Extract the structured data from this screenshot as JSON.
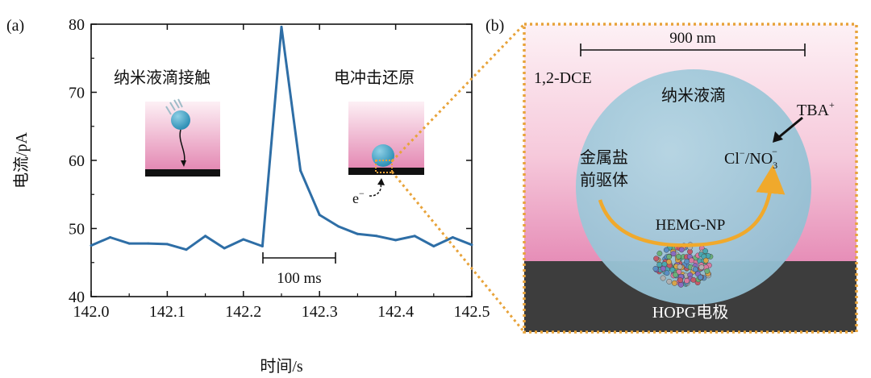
{
  "panel_a": {
    "label": "(a)",
    "annotation_contact": "纳米液滴接触",
    "annotation_reduction": "电冲击还原",
    "electron_label": "e",
    "electron_sup": "−",
    "scale_bar_label": "100 ms"
  },
  "panel_b": {
    "label": "(b)",
    "scale_bar_label": "900 nm",
    "solvent_label": "1,2-DCE",
    "droplet_label": "纳米液滴",
    "cation_label": "TBA",
    "cation_sup": "+",
    "precursor_line1": "金属盐",
    "precursor_line2": "前驱体",
    "anion_cl": "Cl",
    "anion_sup1": "−",
    "anion_slash_no": "/NO",
    "anion_sub": "3",
    "anion_sup2": "−",
    "nanoparticle_label": "HEMG-NP",
    "electrode_label": "HOPG电极"
  },
  "colors": {
    "line": "#2e6ea6",
    "droplet": "#9cc6d8",
    "pink_top": "#fbe9ef",
    "pink_bottom": "#e79cbf",
    "electrode": "#3d3d3d",
    "arrow_orange": "#f0a92c",
    "dotted_orange": "#e8a33a"
  },
  "chart_data": {
    "type": "line",
    "title": "",
    "xlabel": "时间/s",
    "ylabel": "电流/pA",
    "xlim": [
      142.0,
      142.5
    ],
    "ylim": [
      40,
      80
    ],
    "xticks": [
      "142.0",
      "142.1",
      "142.2",
      "142.3",
      "142.4",
      "142.5"
    ],
    "yticks": [
      "40",
      "50",
      "60",
      "70",
      "80"
    ],
    "series": [
      {
        "name": "current",
        "x": [
          142.0,
          142.025,
          142.05,
          142.075,
          142.1,
          142.125,
          142.15,
          142.175,
          142.2,
          142.225,
          142.25,
          142.275,
          142.3,
          142.325,
          142.35,
          142.375,
          142.4,
          142.425,
          142.45,
          142.475,
          142.5
        ],
        "values": [
          47.5,
          48.7,
          47.8,
          47.8,
          47.7,
          46.9,
          48.9,
          47.1,
          48.4,
          47.4,
          79.6,
          58.5,
          52.0,
          50.3,
          49.2,
          48.9,
          48.3,
          48.9,
          47.4,
          48.7,
          47.6
        ]
      }
    ]
  }
}
